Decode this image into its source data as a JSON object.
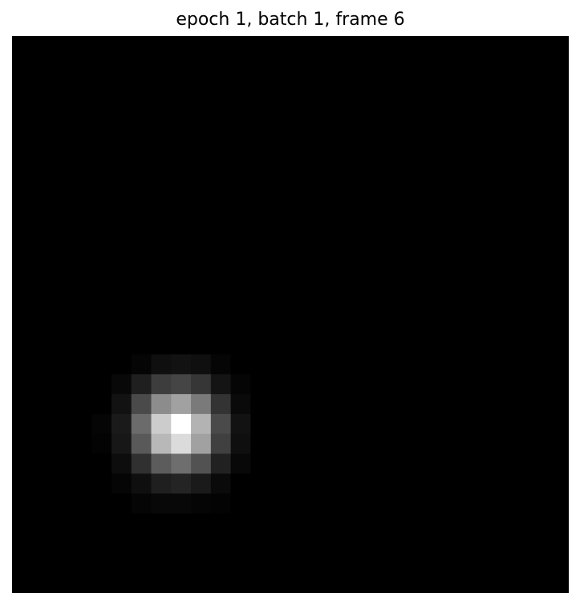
{
  "chart_data": {
    "type": "heatmap",
    "title": "epoch 1, batch 1, frame 6",
    "colormap": "gray",
    "value_range": [
      0,
      1
    ],
    "axes_visible": false,
    "rows": 28,
    "cols": 28,
    "values": [
      [
        0,
        0,
        0,
        0,
        0,
        0,
        0,
        0,
        0,
        0,
        0,
        0,
        0,
        0,
        0,
        0,
        0,
        0,
        0,
        0,
        0,
        0,
        0,
        0,
        0,
        0,
        0,
        0
      ],
      [
        0,
        0,
        0,
        0,
        0,
        0,
        0,
        0,
        0,
        0,
        0,
        0,
        0,
        0,
        0,
        0,
        0,
        0,
        0,
        0,
        0,
        0,
        0,
        0,
        0,
        0,
        0,
        0
      ],
      [
        0,
        0,
        0,
        0,
        0,
        0,
        0,
        0,
        0,
        0,
        0,
        0,
        0,
        0,
        0,
        0,
        0,
        0,
        0,
        0,
        0,
        0,
        0,
        0,
        0,
        0,
        0,
        0
      ],
      [
        0,
        0,
        0,
        0,
        0,
        0,
        0,
        0,
        0,
        0,
        0,
        0,
        0,
        0,
        0,
        0,
        0,
        0,
        0,
        0,
        0,
        0,
        0,
        0,
        0,
        0,
        0,
        0
      ],
      [
        0,
        0,
        0,
        0,
        0,
        0,
        0,
        0,
        0,
        0,
        0,
        0,
        0,
        0,
        0,
        0,
        0,
        0,
        0,
        0,
        0,
        0,
        0,
        0,
        0,
        0,
        0,
        0
      ],
      [
        0,
        0,
        0,
        0,
        0,
        0,
        0,
        0,
        0,
        0,
        0,
        0,
        0,
        0,
        0,
        0,
        0,
        0,
        0,
        0,
        0,
        0,
        0,
        0,
        0,
        0,
        0,
        0
      ],
      [
        0,
        0,
        0,
        0,
        0,
        0,
        0,
        0,
        0,
        0,
        0,
        0,
        0,
        0,
        0,
        0,
        0,
        0,
        0,
        0,
        0,
        0,
        0,
        0,
        0,
        0,
        0,
        0
      ],
      [
        0,
        0,
        0,
        0,
        0,
        0,
        0,
        0,
        0,
        0,
        0,
        0,
        0,
        0,
        0,
        0,
        0,
        0,
        0,
        0,
        0,
        0,
        0,
        0,
        0,
        0,
        0,
        0
      ],
      [
        0,
        0,
        0,
        0,
        0,
        0,
        0,
        0,
        0,
        0,
        0,
        0,
        0,
        0,
        0,
        0,
        0,
        0,
        0,
        0,
        0,
        0,
        0,
        0,
        0,
        0,
        0,
        0
      ],
      [
        0,
        0,
        0,
        0,
        0,
        0,
        0,
        0,
        0,
        0,
        0,
        0,
        0,
        0,
        0,
        0,
        0,
        0,
        0,
        0,
        0,
        0,
        0,
        0,
        0,
        0,
        0,
        0
      ],
      [
        0,
        0,
        0,
        0,
        0,
        0,
        0,
        0,
        0,
        0,
        0,
        0,
        0,
        0,
        0,
        0,
        0,
        0,
        0,
        0,
        0,
        0,
        0,
        0,
        0,
        0,
        0,
        0
      ],
      [
        0,
        0,
        0,
        0,
        0,
        0,
        0,
        0,
        0,
        0,
        0,
        0,
        0,
        0,
        0,
        0,
        0,
        0,
        0,
        0,
        0,
        0,
        0,
        0,
        0,
        0,
        0,
        0
      ],
      [
        0,
        0,
        0,
        0,
        0,
        0,
        0,
        0,
        0,
        0,
        0,
        0,
        0,
        0,
        0,
        0,
        0,
        0,
        0,
        0,
        0,
        0,
        0,
        0,
        0,
        0,
        0,
        0
      ],
      [
        0,
        0,
        0,
        0,
        0,
        0,
        0,
        0,
        0,
        0,
        0,
        0,
        0,
        0,
        0,
        0,
        0,
        0,
        0,
        0,
        0,
        0,
        0,
        0,
        0,
        0,
        0,
        0
      ],
      [
        0,
        0,
        0,
        0,
        0,
        0,
        0,
        0,
        0,
        0,
        0,
        0,
        0,
        0,
        0,
        0,
        0,
        0,
        0,
        0,
        0,
        0,
        0,
        0,
        0,
        0,
        0,
        0
      ],
      [
        0,
        0,
        0,
        0,
        0,
        0,
        0,
        0,
        0,
        0,
        0,
        0,
        0,
        0,
        0,
        0,
        0,
        0,
        0,
        0,
        0,
        0,
        0,
        0,
        0,
        0,
        0,
        0
      ],
      [
        0,
        0,
        0,
        0,
        0,
        0,
        0.02,
        0.06,
        0.07,
        0.06,
        0.02,
        0,
        0,
        0,
        0,
        0,
        0,
        0,
        0,
        0,
        0,
        0,
        0,
        0,
        0,
        0,
        0,
        0
      ],
      [
        0,
        0,
        0,
        0,
        0,
        0.03,
        0.12,
        0.24,
        0.27,
        0.21,
        0.08,
        0.02,
        0,
        0,
        0,
        0,
        0,
        0,
        0,
        0,
        0,
        0,
        0,
        0,
        0,
        0,
        0,
        0
      ],
      [
        0,
        0,
        0,
        0,
        0,
        0.07,
        0.29,
        0.55,
        0.63,
        0.48,
        0.2,
        0.04,
        0,
        0,
        0,
        0,
        0,
        0,
        0,
        0,
        0,
        0,
        0,
        0,
        0,
        0,
        0,
        0
      ],
      [
        0,
        0,
        0,
        0,
        0.02,
        0.1,
        0.42,
        0.8,
        1,
        0.7,
        0.29,
        0.07,
        0,
        0,
        0,
        0,
        0,
        0,
        0,
        0,
        0,
        0,
        0,
        0,
        0,
        0,
        0,
        0
      ],
      [
        0,
        0,
        0,
        0,
        0.01,
        0.09,
        0.35,
        0.72,
        0.86,
        0.63,
        0.25,
        0.06,
        0,
        0,
        0,
        0,
        0,
        0,
        0,
        0,
        0,
        0,
        0,
        0,
        0,
        0,
        0,
        0
      ],
      [
        0,
        0,
        0,
        0,
        0,
        0.05,
        0.19,
        0.36,
        0.43,
        0.32,
        0.13,
        0.03,
        0,
        0,
        0,
        0,
        0,
        0,
        0,
        0,
        0,
        0,
        0,
        0,
        0,
        0,
        0,
        0
      ],
      [
        0,
        0,
        0,
        0,
        0,
        0.02,
        0.06,
        0.12,
        0.14,
        0.1,
        0.04,
        0,
        0,
        0,
        0,
        0,
        0,
        0,
        0,
        0,
        0,
        0,
        0,
        0,
        0,
        0,
        0,
        0
      ],
      [
        0,
        0,
        0,
        0,
        0,
        0,
        0.02,
        0.03,
        0.03,
        0.02,
        0.01,
        0,
        0,
        0,
        0,
        0,
        0,
        0,
        0,
        0,
        0,
        0,
        0,
        0,
        0,
        0,
        0,
        0
      ],
      [
        0,
        0,
        0,
        0,
        0,
        0,
        0,
        0,
        0,
        0,
        0,
        0,
        0,
        0,
        0,
        0,
        0,
        0,
        0,
        0,
        0,
        0,
        0,
        0,
        0,
        0,
        0,
        0
      ],
      [
        0,
        0,
        0,
        0,
        0,
        0,
        0,
        0,
        0,
        0,
        0,
        0,
        0,
        0,
        0,
        0,
        0,
        0,
        0,
        0,
        0,
        0,
        0,
        0,
        0,
        0,
        0,
        0
      ],
      [
        0,
        0,
        0,
        0,
        0,
        0,
        0,
        0,
        0,
        0,
        0,
        0,
        0,
        0,
        0,
        0,
        0,
        0,
        0,
        0,
        0,
        0,
        0,
        0,
        0,
        0,
        0,
        0
      ],
      [
        0,
        0,
        0,
        0,
        0,
        0,
        0,
        0,
        0,
        0,
        0,
        0,
        0,
        0,
        0,
        0,
        0,
        0,
        0,
        0,
        0,
        0,
        0,
        0,
        0,
        0,
        0,
        0
      ]
    ]
  }
}
